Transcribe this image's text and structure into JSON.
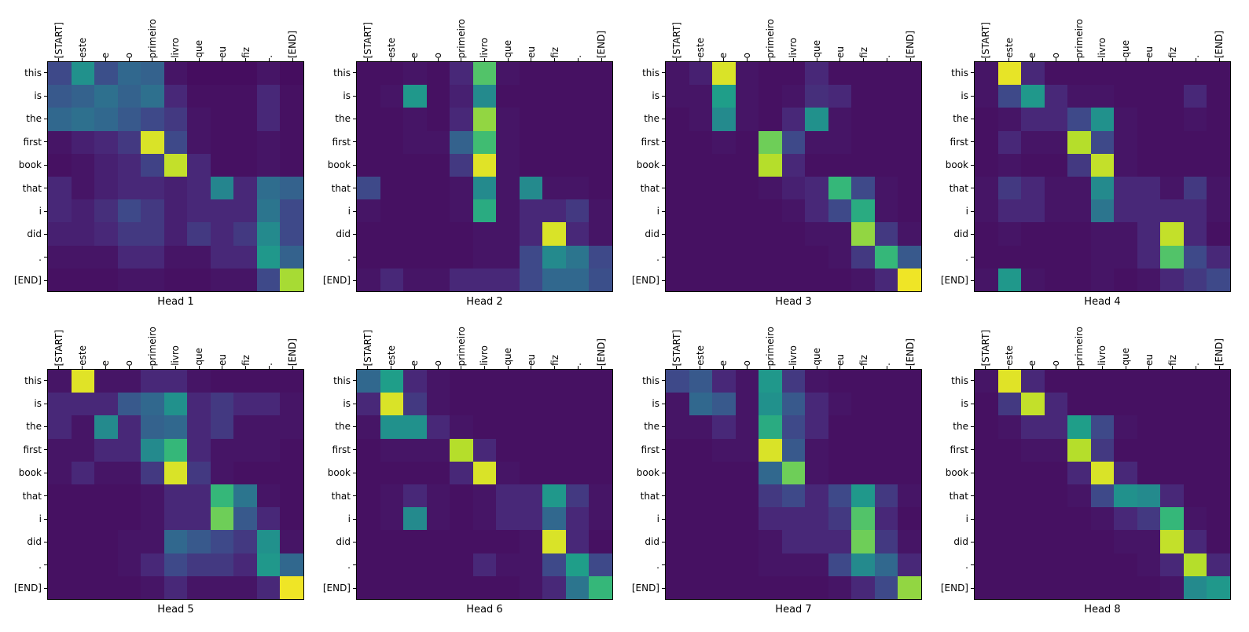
{
  "figure": {
    "background": "#ffffff",
    "layout": "2 rows x 4 columns of attention heatmaps"
  },
  "chart_data": {
    "type": "heatmap",
    "title": "",
    "colormap": "viridis",
    "colormap_anchors": [
      "#440154",
      "#482878",
      "#3e4989",
      "#31688e",
      "#26828e",
      "#21918c",
      "#1f9e89",
      "#35b779",
      "#6ece58",
      "#b5de2b",
      "#fde725"
    ],
    "vmin": 0,
    "vmax": 1,
    "x_labels": [
      "[START]",
      "este",
      "e",
      "o",
      "primeiro",
      "livro",
      "que",
      "eu",
      "fiz",
      ".",
      "[END]"
    ],
    "y_labels": [
      "this",
      "is",
      "the",
      "first",
      "book",
      "that",
      "i",
      "did",
      ".",
      "[END]"
    ],
    "panels": [
      {
        "title": "Head 1",
        "values": [
          [
            0.2,
            0.5,
            0.22,
            0.3,
            0.28,
            0.05,
            0.03,
            0.03,
            0.03,
            0.05,
            0.03
          ],
          [
            0.25,
            0.28,
            0.33,
            0.28,
            0.33,
            0.1,
            0.04,
            0.04,
            0.04,
            0.1,
            0.04
          ],
          [
            0.3,
            0.33,
            0.3,
            0.25,
            0.2,
            0.15,
            0.05,
            0.04,
            0.04,
            0.1,
            0.04
          ],
          [
            0.05,
            0.08,
            0.1,
            0.15,
            0.95,
            0.2,
            0.05,
            0.04,
            0.04,
            0.05,
            0.04
          ],
          [
            0.04,
            0.05,
            0.08,
            0.1,
            0.18,
            0.92,
            0.1,
            0.04,
            0.04,
            0.05,
            0.04
          ],
          [
            0.1,
            0.05,
            0.08,
            0.1,
            0.1,
            0.08,
            0.1,
            0.42,
            0.1,
            0.32,
            0.28
          ],
          [
            0.1,
            0.08,
            0.12,
            0.2,
            0.15,
            0.08,
            0.1,
            0.1,
            0.1,
            0.35,
            0.2
          ],
          [
            0.08,
            0.08,
            0.1,
            0.15,
            0.15,
            0.08,
            0.15,
            0.1,
            0.15,
            0.45,
            0.2
          ],
          [
            0.05,
            0.05,
            0.05,
            0.1,
            0.1,
            0.05,
            0.05,
            0.1,
            0.1,
            0.55,
            0.28
          ],
          [
            0.04,
            0.04,
            0.04,
            0.05,
            0.05,
            0.04,
            0.04,
            0.05,
            0.05,
            0.2,
            0.88
          ]
        ]
      },
      {
        "title": "Head 2",
        "values": [
          [
            0.04,
            0.04,
            0.05,
            0.04,
            0.1,
            0.75,
            0.05,
            0.04,
            0.04,
            0.04,
            0.04
          ],
          [
            0.04,
            0.05,
            0.55,
            0.04,
            0.08,
            0.45,
            0.04,
            0.04,
            0.04,
            0.04,
            0.04
          ],
          [
            0.04,
            0.04,
            0.05,
            0.04,
            0.1,
            0.85,
            0.05,
            0.04,
            0.04,
            0.04,
            0.04
          ],
          [
            0.04,
            0.04,
            0.05,
            0.05,
            0.28,
            0.72,
            0.05,
            0.04,
            0.04,
            0.04,
            0.04
          ],
          [
            0.04,
            0.04,
            0.04,
            0.04,
            0.15,
            0.96,
            0.05,
            0.04,
            0.04,
            0.04,
            0.04
          ],
          [
            0.2,
            0.04,
            0.04,
            0.04,
            0.05,
            0.45,
            0.05,
            0.45,
            0.05,
            0.05,
            0.04
          ],
          [
            0.05,
            0.04,
            0.04,
            0.04,
            0.05,
            0.65,
            0.05,
            0.1,
            0.1,
            0.15,
            0.05
          ],
          [
            0.04,
            0.04,
            0.04,
            0.04,
            0.04,
            0.05,
            0.05,
            0.1,
            0.95,
            0.1,
            0.05
          ],
          [
            0.04,
            0.04,
            0.04,
            0.04,
            0.04,
            0.05,
            0.05,
            0.2,
            0.45,
            0.35,
            0.2
          ],
          [
            0.05,
            0.1,
            0.05,
            0.05,
            0.1,
            0.1,
            0.1,
            0.2,
            0.3,
            0.3,
            0.22
          ]
        ]
      },
      {
        "title": "Head 3",
        "values": [
          [
            0.05,
            0.08,
            0.95,
            0.05,
            0.04,
            0.04,
            0.1,
            0.04,
            0.04,
            0.04,
            0.04
          ],
          [
            0.05,
            0.05,
            0.6,
            0.05,
            0.04,
            0.05,
            0.12,
            0.1,
            0.04,
            0.04,
            0.04
          ],
          [
            0.04,
            0.05,
            0.45,
            0.05,
            0.04,
            0.1,
            0.5,
            0.05,
            0.04,
            0.04,
            0.04
          ],
          [
            0.04,
            0.04,
            0.05,
            0.04,
            0.8,
            0.2,
            0.05,
            0.05,
            0.04,
            0.04,
            0.04
          ],
          [
            0.04,
            0.04,
            0.04,
            0.04,
            0.9,
            0.1,
            0.04,
            0.04,
            0.04,
            0.04,
            0.04
          ],
          [
            0.04,
            0.04,
            0.04,
            0.04,
            0.05,
            0.08,
            0.1,
            0.7,
            0.2,
            0.05,
            0.04
          ],
          [
            0.04,
            0.04,
            0.04,
            0.04,
            0.04,
            0.05,
            0.1,
            0.2,
            0.65,
            0.05,
            0.04
          ],
          [
            0.04,
            0.04,
            0.04,
            0.04,
            0.04,
            0.04,
            0.05,
            0.05,
            0.85,
            0.15,
            0.05
          ],
          [
            0.04,
            0.04,
            0.04,
            0.04,
            0.04,
            0.04,
            0.04,
            0.05,
            0.15,
            0.7,
            0.25
          ],
          [
            0.04,
            0.04,
            0.04,
            0.04,
            0.04,
            0.04,
            0.04,
            0.04,
            0.05,
            0.1,
            0.98
          ]
        ]
      },
      {
        "title": "Head 4",
        "values": [
          [
            0.05,
            0.97,
            0.1,
            0.04,
            0.04,
            0.04,
            0.04,
            0.04,
            0.04,
            0.04,
            0.04
          ],
          [
            0.05,
            0.2,
            0.55,
            0.1,
            0.05,
            0.05,
            0.04,
            0.04,
            0.04,
            0.1,
            0.04
          ],
          [
            0.04,
            0.05,
            0.1,
            0.1,
            0.2,
            0.5,
            0.05,
            0.04,
            0.04,
            0.05,
            0.04
          ],
          [
            0.04,
            0.1,
            0.05,
            0.05,
            0.9,
            0.2,
            0.05,
            0.04,
            0.04,
            0.04,
            0.04
          ],
          [
            0.04,
            0.05,
            0.04,
            0.04,
            0.15,
            0.92,
            0.05,
            0.04,
            0.04,
            0.04,
            0.04
          ],
          [
            0.05,
            0.15,
            0.1,
            0.05,
            0.05,
            0.45,
            0.1,
            0.1,
            0.05,
            0.15,
            0.05
          ],
          [
            0.05,
            0.1,
            0.1,
            0.05,
            0.05,
            0.35,
            0.1,
            0.1,
            0.1,
            0.1,
            0.05
          ],
          [
            0.04,
            0.05,
            0.04,
            0.04,
            0.04,
            0.05,
            0.05,
            0.1,
            0.92,
            0.1,
            0.04
          ],
          [
            0.04,
            0.04,
            0.04,
            0.04,
            0.04,
            0.05,
            0.05,
            0.1,
            0.75,
            0.2,
            0.1
          ],
          [
            0.05,
            0.55,
            0.05,
            0.04,
            0.04,
            0.05,
            0.04,
            0.05,
            0.1,
            0.15,
            0.2
          ]
        ]
      },
      {
        "title": "Head 5",
        "values": [
          [
            0.05,
            0.96,
            0.05,
            0.05,
            0.1,
            0.1,
            0.05,
            0.04,
            0.04,
            0.04,
            0.04
          ],
          [
            0.1,
            0.1,
            0.1,
            0.25,
            0.3,
            0.5,
            0.1,
            0.15,
            0.1,
            0.1,
            0.05
          ],
          [
            0.1,
            0.05,
            0.45,
            0.1,
            0.28,
            0.3,
            0.1,
            0.15,
            0.05,
            0.05,
            0.05
          ],
          [
            0.05,
            0.05,
            0.1,
            0.1,
            0.45,
            0.7,
            0.1,
            0.05,
            0.05,
            0.05,
            0.04
          ],
          [
            0.05,
            0.1,
            0.05,
            0.05,
            0.15,
            0.95,
            0.15,
            0.05,
            0.04,
            0.04,
            0.04
          ],
          [
            0.04,
            0.04,
            0.04,
            0.04,
            0.05,
            0.1,
            0.1,
            0.7,
            0.35,
            0.05,
            0.04
          ],
          [
            0.04,
            0.04,
            0.04,
            0.04,
            0.05,
            0.1,
            0.1,
            0.8,
            0.25,
            0.1,
            0.04
          ],
          [
            0.04,
            0.04,
            0.04,
            0.05,
            0.05,
            0.3,
            0.25,
            0.2,
            0.15,
            0.5,
            0.05
          ],
          [
            0.04,
            0.04,
            0.04,
            0.05,
            0.1,
            0.2,
            0.15,
            0.15,
            0.1,
            0.55,
            0.3
          ],
          [
            0.04,
            0.04,
            0.04,
            0.04,
            0.05,
            0.1,
            0.05,
            0.05,
            0.05,
            0.1,
            0.98
          ]
        ]
      },
      {
        "title": "Head 6",
        "values": [
          [
            0.3,
            0.6,
            0.1,
            0.05,
            0.04,
            0.04,
            0.04,
            0.04,
            0.04,
            0.04,
            0.04
          ],
          [
            0.1,
            0.95,
            0.15,
            0.05,
            0.04,
            0.04,
            0.04,
            0.04,
            0.04,
            0.04,
            0.04
          ],
          [
            0.05,
            0.5,
            0.5,
            0.1,
            0.05,
            0.04,
            0.04,
            0.04,
            0.04,
            0.04,
            0.04
          ],
          [
            0.04,
            0.05,
            0.05,
            0.05,
            0.9,
            0.1,
            0.04,
            0.04,
            0.04,
            0.04,
            0.04
          ],
          [
            0.04,
            0.04,
            0.04,
            0.04,
            0.1,
            0.95,
            0.05,
            0.04,
            0.04,
            0.04,
            0.04
          ],
          [
            0.04,
            0.05,
            0.1,
            0.05,
            0.04,
            0.05,
            0.1,
            0.1,
            0.55,
            0.15,
            0.05
          ],
          [
            0.04,
            0.05,
            0.45,
            0.05,
            0.04,
            0.05,
            0.1,
            0.1,
            0.3,
            0.1,
            0.05
          ],
          [
            0.04,
            0.04,
            0.04,
            0.04,
            0.04,
            0.04,
            0.04,
            0.05,
            0.95,
            0.1,
            0.04
          ],
          [
            0.04,
            0.04,
            0.04,
            0.04,
            0.04,
            0.1,
            0.05,
            0.05,
            0.2,
            0.6,
            0.2
          ],
          [
            0.04,
            0.04,
            0.04,
            0.04,
            0.04,
            0.04,
            0.04,
            0.05,
            0.1,
            0.35,
            0.7
          ]
        ]
      },
      {
        "title": "Head 7",
        "values": [
          [
            0.2,
            0.25,
            0.1,
            0.05,
            0.55,
            0.15,
            0.05,
            0.04,
            0.04,
            0.04,
            0.04
          ],
          [
            0.05,
            0.3,
            0.25,
            0.05,
            0.5,
            0.25,
            0.1,
            0.05,
            0.04,
            0.04,
            0.04
          ],
          [
            0.05,
            0.05,
            0.1,
            0.05,
            0.65,
            0.2,
            0.1,
            0.04,
            0.04,
            0.04,
            0.04
          ],
          [
            0.04,
            0.04,
            0.05,
            0.05,
            0.95,
            0.25,
            0.05,
            0.04,
            0.04,
            0.04,
            0.04
          ],
          [
            0.04,
            0.04,
            0.04,
            0.04,
            0.3,
            0.8,
            0.05,
            0.04,
            0.04,
            0.04,
            0.04
          ],
          [
            0.04,
            0.04,
            0.04,
            0.04,
            0.15,
            0.2,
            0.1,
            0.2,
            0.55,
            0.15,
            0.05
          ],
          [
            0.04,
            0.04,
            0.04,
            0.04,
            0.1,
            0.1,
            0.1,
            0.15,
            0.75,
            0.1,
            0.04
          ],
          [
            0.04,
            0.04,
            0.04,
            0.04,
            0.05,
            0.1,
            0.1,
            0.1,
            0.8,
            0.15,
            0.05
          ],
          [
            0.04,
            0.04,
            0.04,
            0.04,
            0.05,
            0.05,
            0.05,
            0.2,
            0.45,
            0.3,
            0.1
          ],
          [
            0.04,
            0.04,
            0.04,
            0.04,
            0.04,
            0.04,
            0.04,
            0.05,
            0.1,
            0.2,
            0.85
          ]
        ]
      },
      {
        "title": "Head 8",
        "values": [
          [
            0.05,
            0.96,
            0.1,
            0.04,
            0.04,
            0.04,
            0.04,
            0.04,
            0.04,
            0.04,
            0.04
          ],
          [
            0.04,
            0.15,
            0.92,
            0.1,
            0.04,
            0.04,
            0.04,
            0.04,
            0.04,
            0.04,
            0.04
          ],
          [
            0.04,
            0.05,
            0.1,
            0.1,
            0.6,
            0.2,
            0.05,
            0.04,
            0.04,
            0.04,
            0.04
          ],
          [
            0.04,
            0.04,
            0.05,
            0.05,
            0.9,
            0.15,
            0.04,
            0.04,
            0.04,
            0.04,
            0.04
          ],
          [
            0.04,
            0.04,
            0.04,
            0.04,
            0.1,
            0.95,
            0.1,
            0.04,
            0.04,
            0.04,
            0.04
          ],
          [
            0.04,
            0.04,
            0.04,
            0.04,
            0.05,
            0.2,
            0.5,
            0.45,
            0.1,
            0.04,
            0.04
          ],
          [
            0.04,
            0.04,
            0.04,
            0.04,
            0.04,
            0.05,
            0.1,
            0.15,
            0.7,
            0.05,
            0.04
          ],
          [
            0.04,
            0.04,
            0.04,
            0.04,
            0.04,
            0.04,
            0.05,
            0.05,
            0.92,
            0.1,
            0.04
          ],
          [
            0.04,
            0.04,
            0.04,
            0.04,
            0.04,
            0.04,
            0.04,
            0.05,
            0.1,
            0.9,
            0.1
          ],
          [
            0.04,
            0.04,
            0.04,
            0.04,
            0.04,
            0.04,
            0.04,
            0.04,
            0.05,
            0.45,
            0.55
          ]
        ]
      }
    ]
  }
}
